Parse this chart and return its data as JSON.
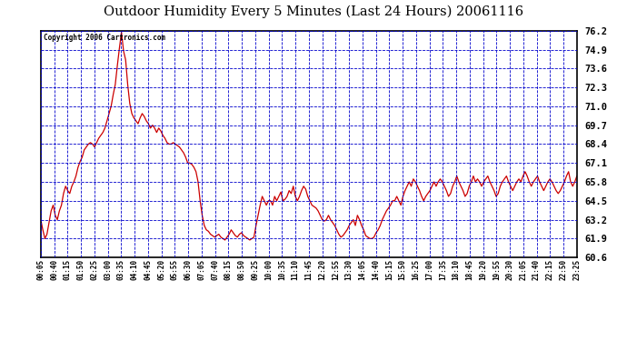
{
  "title": "Outdoor Humidity Every 5 Minutes (Last 24 Hours) 20061116",
  "copyright": "Copyright 2006 Cartronics.com",
  "background_color": "#ffffff",
  "plot_bg_color": "#ffffff",
  "line_color": "#cc0000",
  "grid_color": "#0000cc",
  "y_ticks": [
    60.6,
    61.9,
    63.2,
    64.5,
    65.8,
    67.1,
    68.4,
    69.7,
    71.0,
    72.3,
    73.6,
    74.9,
    76.2
  ],
  "ylim": [
    60.6,
    76.2
  ],
  "x_tick_labels": [
    "00:05",
    "00:40",
    "01:15",
    "01:50",
    "02:25",
    "03:00",
    "03:35",
    "04:10",
    "04:45",
    "05:20",
    "05:55",
    "06:30",
    "07:05",
    "07:40",
    "08:15",
    "08:50",
    "09:25",
    "10:00",
    "10:35",
    "11:10",
    "11:45",
    "12:20",
    "12:55",
    "13:30",
    "14:05",
    "14:40",
    "15:15",
    "15:50",
    "16:25",
    "17:00",
    "17:35",
    "18:10",
    "18:45",
    "19:20",
    "19:55",
    "20:30",
    "21:05",
    "21:40",
    "22:15",
    "22:50",
    "23:25"
  ],
  "data_y": [
    63.2,
    62.5,
    61.9,
    62.2,
    63.0,
    63.8,
    64.2,
    63.5,
    63.2,
    63.8,
    64.2,
    65.0,
    65.5,
    65.2,
    65.0,
    65.5,
    65.8,
    66.2,
    66.8,
    67.2,
    67.5,
    68.0,
    68.2,
    68.4,
    68.5,
    68.4,
    68.2,
    68.5,
    68.8,
    69.0,
    69.2,
    69.5,
    70.0,
    70.5,
    71.0,
    71.8,
    72.5,
    73.8,
    75.0,
    76.1,
    74.8,
    74.2,
    72.5,
    71.2,
    70.5,
    70.2,
    70.0,
    69.8,
    70.2,
    70.5,
    70.3,
    70.0,
    69.8,
    69.5,
    69.7,
    69.5,
    69.2,
    69.5,
    69.3,
    69.0,
    68.8,
    68.5,
    68.4,
    68.4,
    68.5,
    68.4,
    68.3,
    68.2,
    68.0,
    67.8,
    67.5,
    67.1,
    67.1,
    67.0,
    66.8,
    66.5,
    65.8,
    64.5,
    63.5,
    62.8,
    62.5,
    62.4,
    62.2,
    62.1,
    62.0,
    62.1,
    62.2,
    62.0,
    61.9,
    61.8,
    62.0,
    62.2,
    62.5,
    62.3,
    62.1,
    62.0,
    62.2,
    62.3,
    62.1,
    62.0,
    61.9,
    61.8,
    61.9,
    62.0,
    62.8,
    63.5,
    64.2,
    64.8,
    64.5,
    64.2,
    64.5,
    64.5,
    64.2,
    64.8,
    64.5,
    64.8,
    65.1,
    64.5,
    64.6,
    64.8,
    65.2,
    65.0,
    65.5,
    64.8,
    64.5,
    64.8,
    65.2,
    65.5,
    65.3,
    64.8,
    64.5,
    64.2,
    64.1,
    64.0,
    63.8,
    63.5,
    63.2,
    63.1,
    63.2,
    63.5,
    63.2,
    63.0,
    62.8,
    62.5,
    62.2,
    62.0,
    62.1,
    62.3,
    62.5,
    62.8,
    63.0,
    63.2,
    62.8,
    63.5,
    63.2,
    62.8,
    62.5,
    62.1,
    62.0,
    61.9,
    61.9,
    62.0,
    62.3,
    62.5,
    62.8,
    63.2,
    63.5,
    63.8,
    64.0,
    64.2,
    64.5,
    64.5,
    64.8,
    64.5,
    64.2,
    64.8,
    65.2,
    65.5,
    65.8,
    65.5,
    66.0,
    65.8,
    65.5,
    65.2,
    64.8,
    64.5,
    64.8,
    65.0,
    65.2,
    65.5,
    65.8,
    65.5,
    65.8,
    66.0,
    65.8,
    65.5,
    65.2,
    64.8,
    65.0,
    65.5,
    65.8,
    66.2,
    65.8,
    65.5,
    65.2,
    64.8,
    65.0,
    65.5,
    65.8,
    66.2,
    65.8,
    66.0,
    65.8,
    65.5,
    65.8,
    66.0,
    66.2,
    65.8,
    65.5,
    65.2,
    64.8,
    65.0,
    65.5,
    65.8,
    66.0,
    66.2,
    65.8,
    65.5,
    65.2,
    65.5,
    65.8,
    66.0,
    65.8,
    66.2,
    66.5,
    66.2,
    65.8,
    65.5,
    65.8,
    66.0,
    66.2,
    65.8,
    65.5,
    65.2,
    65.5,
    65.8,
    66.0,
    65.8,
    65.5,
    65.2,
    65.0,
    65.2,
    65.5,
    65.8,
    66.2,
    66.5,
    65.8,
    65.5,
    65.8,
    66.2
  ]
}
